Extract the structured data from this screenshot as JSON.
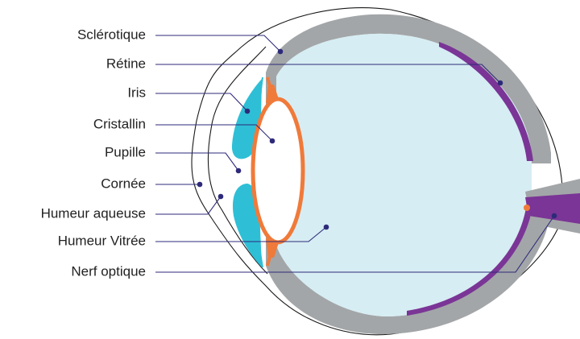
{
  "colors": {
    "sclera": "#a3a6a8",
    "retina": "#7a3596",
    "vitreous": "#d6edf3",
    "iris": "#2ebfd6",
    "lens": "#f07a3a",
    "outline": "#1a1a1a",
    "leader": "#2e2a7a"
  },
  "labels": {
    "sclerotique": "Sclérotique",
    "retine": "Rétine",
    "iris": "Iris",
    "cristallin": "Cristallin",
    "pupille": "Pupille",
    "cornee": "Cornée",
    "humeur_aqueuse": "Humeur aqueuse",
    "humeur_vitree": "Humeur Vitrée",
    "nerf_optique": "Nerf optique"
  }
}
